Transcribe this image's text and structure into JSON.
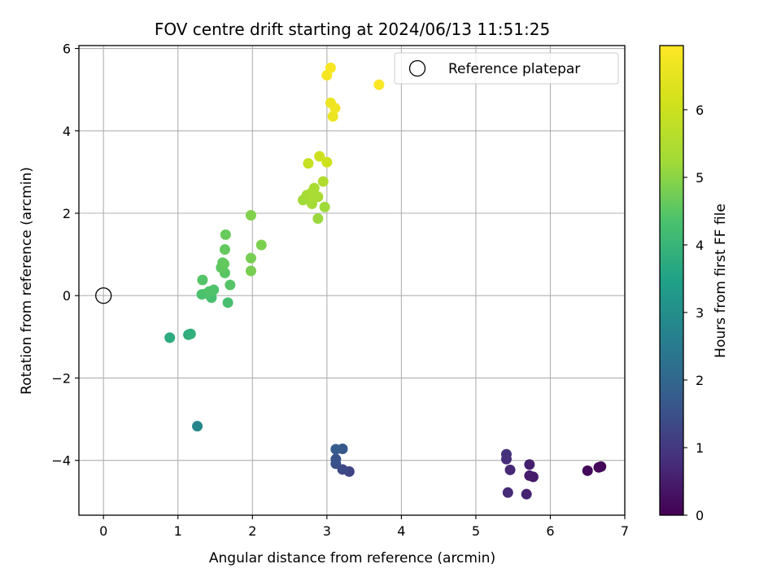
{
  "chart_data": {
    "type": "scatter",
    "title": "FOV centre drift starting at 2024/06/13 11:51:25",
    "xlabel": "Angular distance from reference (arcmin)",
    "ylabel": "Rotation from reference (arcmin)",
    "xlim": [
      -0.33,
      7.0
    ],
    "ylim": [
      -5.33,
      6.07
    ],
    "xticks": [
      0,
      1,
      2,
      3,
      4,
      5,
      6,
      7
    ],
    "yticks": [
      -4,
      -2,
      0,
      2,
      4,
      6
    ],
    "grid": true,
    "legend": {
      "placement": "top-right",
      "entries": [
        "Reference platepar"
      ]
    },
    "reference_point": {
      "x": 0,
      "y": 0
    },
    "colorbar": {
      "label": "Hours from first FF file",
      "range": [
        0,
        6.95
      ],
      "ticks": [
        0,
        1,
        2,
        3,
        4,
        5,
        6
      ],
      "colormap": "viridis"
    },
    "points": [
      {
        "x": 6.68,
        "y": -4.15,
        "h": 0.05
      },
      {
        "x": 6.65,
        "y": -4.17,
        "h": 0.1
      },
      {
        "x": 6.5,
        "y": -4.25,
        "h": 0.15
      },
      {
        "x": 5.77,
        "y": -4.4,
        "h": 0.45
      },
      {
        "x": 5.72,
        "y": -4.37,
        "h": 0.5
      },
      {
        "x": 5.72,
        "y": -4.1,
        "h": 0.55
      },
      {
        "x": 5.68,
        "y": -4.82,
        "h": 0.6
      },
      {
        "x": 5.46,
        "y": -4.23,
        "h": 0.7
      },
      {
        "x": 5.43,
        "y": -4.78,
        "h": 0.75
      },
      {
        "x": 5.41,
        "y": -3.97,
        "h": 0.8
      },
      {
        "x": 5.41,
        "y": -3.85,
        "h": 0.85
      },
      {
        "x": 3.3,
        "y": -4.27,
        "h": 1.25
      },
      {
        "x": 3.21,
        "y": -4.22,
        "h": 1.35
      },
      {
        "x": 3.12,
        "y": -4.08,
        "h": 1.45
      },
      {
        "x": 3.12,
        "y": -3.97,
        "h": 1.55
      },
      {
        "x": 3.21,
        "y": -3.72,
        "h": 1.65
      },
      {
        "x": 3.12,
        "y": -3.73,
        "h": 1.75
      },
      {
        "x": 1.26,
        "y": -3.17,
        "h": 2.75
      },
      {
        "x": 0.89,
        "y": -1.02,
        "h": 3.75
      },
      {
        "x": 1.14,
        "y": -0.95,
        "h": 3.8
      },
      {
        "x": 1.17,
        "y": -0.93,
        "h": 3.85
      },
      {
        "x": 1.67,
        "y": -0.17,
        "h": 4.3
      },
      {
        "x": 1.45,
        "y": -0.05,
        "h": 4.3
      },
      {
        "x": 1.32,
        "y": 0.03,
        "h": 4.35
      },
      {
        "x": 1.38,
        "y": 0.05,
        "h": 4.35
      },
      {
        "x": 1.42,
        "y": 0.1,
        "h": 4.4
      },
      {
        "x": 1.48,
        "y": 0.14,
        "h": 4.4
      },
      {
        "x": 1.33,
        "y": 0.38,
        "h": 4.45
      },
      {
        "x": 1.7,
        "y": 0.26,
        "h": 4.45
      },
      {
        "x": 1.63,
        "y": 0.55,
        "h": 4.5
      },
      {
        "x": 1.58,
        "y": 0.68,
        "h": 4.55
      },
      {
        "x": 1.6,
        "y": 0.8,
        "h": 4.55
      },
      {
        "x": 1.62,
        "y": 0.77,
        "h": 4.6
      },
      {
        "x": 1.63,
        "y": 1.12,
        "h": 4.6
      },
      {
        "x": 1.64,
        "y": 1.48,
        "h": 4.65
      },
      {
        "x": 1.98,
        "y": 0.6,
        "h": 4.8
      },
      {
        "x": 1.98,
        "y": 0.91,
        "h": 4.8
      },
      {
        "x": 2.12,
        "y": 1.23,
        "h": 4.85
      },
      {
        "x": 1.98,
        "y": 1.95,
        "h": 4.9
      },
      {
        "x": 2.88,
        "y": 1.87,
        "h": 5.15
      },
      {
        "x": 2.97,
        "y": 2.15,
        "h": 5.2
      },
      {
        "x": 2.68,
        "y": 2.32,
        "h": 5.25
      },
      {
        "x": 2.8,
        "y": 2.23,
        "h": 5.3
      },
      {
        "x": 2.73,
        "y": 2.44,
        "h": 5.3
      },
      {
        "x": 2.8,
        "y": 2.4,
        "h": 5.35
      },
      {
        "x": 2.88,
        "y": 2.4,
        "h": 5.35
      },
      {
        "x": 2.8,
        "y": 2.51,
        "h": 5.4
      },
      {
        "x": 2.83,
        "y": 2.61,
        "h": 5.4
      },
      {
        "x": 2.95,
        "y": 2.77,
        "h": 5.5
      },
      {
        "x": 2.75,
        "y": 3.21,
        "h": 5.9
      },
      {
        "x": 2.9,
        "y": 3.38,
        "h": 6.0
      },
      {
        "x": 3.0,
        "y": 3.24,
        "h": 6.05
      },
      {
        "x": 3.08,
        "y": 4.35,
        "h": 6.6
      },
      {
        "x": 3.05,
        "y": 4.68,
        "h": 6.65
      },
      {
        "x": 3.11,
        "y": 4.55,
        "h": 6.7
      },
      {
        "x": 3.0,
        "y": 5.35,
        "h": 6.8
      },
      {
        "x": 3.05,
        "y": 5.53,
        "h": 6.85
      },
      {
        "x": 3.7,
        "y": 5.12,
        "h": 6.9
      }
    ]
  }
}
